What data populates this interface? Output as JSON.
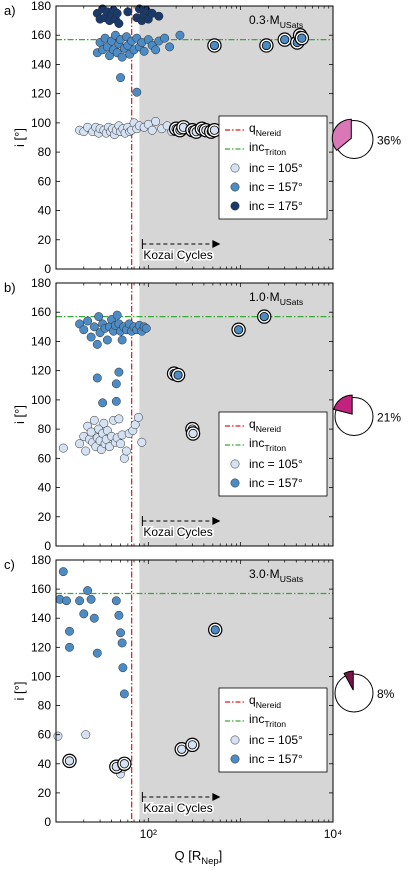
{
  "chart_data": [
    {
      "type": "scatter",
      "panel_label": "a)",
      "mass_label": "0.3·M",
      "mass_sub": "USats",
      "percent": "36%",
      "fraction": 0.36,
      "pie_color": "#d977b7",
      "ylabel": "i [°]",
      "yticks": [
        "0",
        "20",
        "40",
        "60",
        "80",
        "100",
        "120",
        "140",
        "160",
        "180"
      ],
      "xticks": [],
      "xlabel": "",
      "ylim": [
        0,
        180
      ],
      "xlim": [
        10,
        10000
      ],
      "x_log": true,
      "shade_from_x": 80,
      "q_nereid": 66,
      "inc_triton": 157,
      "legend_position": "bottom-right",
      "legend": {
        "q": "q",
        "q_sub": "Nereid",
        "inc": "inc",
        "inc_sub": "Triton",
        "series": [
          "inc = 105°",
          "inc = 157°",
          "inc = 175°"
        ]
      },
      "kozai_label": "Kozai Cycles",
      "series": [
        {
          "color": "#d4e2f3",
          "points": [
            [
              18,
              95
            ],
            [
              20,
              94
            ],
            [
              22,
              97
            ],
            [
              25,
              94
            ],
            [
              27,
              97
            ],
            [
              29,
              93
            ],
            [
              30,
              96
            ],
            [
              33,
              95
            ],
            [
              35,
              93
            ],
            [
              37,
              97
            ],
            [
              39,
              94
            ],
            [
              41,
              96
            ],
            [
              43,
              92
            ],
            [
              45,
              95
            ],
            [
              48,
              98
            ],
            [
              50,
              94
            ],
            [
              53,
              96
            ],
            [
              56,
              93
            ],
            [
              60,
              97
            ],
            [
              63,
              94
            ],
            [
              66,
              95
            ],
            [
              70,
              100
            ],
            [
              75,
              96
            ],
            [
              80,
              98
            ],
            [
              90,
              97
            ],
            [
              100,
              99
            ],
            [
              110,
              95
            ],
            [
              120,
              101
            ],
            [
              140,
              96
            ],
            [
              160,
              98
            ],
            [
              180,
              94
            ]
          ]
        },
        {
          "color": "#4d8bc4",
          "points": [
            [
              28,
              148
            ],
            [
              30,
              155
            ],
            [
              32,
              150
            ],
            [
              34,
              158
            ],
            [
              36,
              152
            ],
            [
              38,
              146
            ],
            [
              40,
              156
            ],
            [
              42,
              150
            ],
            [
              44,
              160
            ],
            [
              46,
              148
            ],
            [
              48,
              154
            ],
            [
              50,
              157
            ],
            [
              52,
              145
            ],
            [
              55,
              151
            ],
            [
              58,
              159
            ],
            [
              60,
              153
            ],
            [
              63,
              147
            ],
            [
              66,
              156
            ],
            [
              70,
              150
            ],
            [
              75,
              158
            ],
            [
              80,
              152
            ],
            [
              85,
              155
            ],
            [
              90,
              149
            ],
            [
              100,
              157
            ],
            [
              110,
              153
            ],
            [
              120,
              150
            ],
            [
              130,
              156
            ],
            [
              150,
              158
            ],
            [
              170,
              152
            ],
            [
              220,
              160
            ],
            [
              50,
              131
            ],
            [
              75,
              121
            ]
          ]
        },
        {
          "color": "#1a3a6b",
          "points": [
            [
              28,
              175
            ],
            [
              30,
              171
            ],
            [
              32,
              178
            ],
            [
              34,
              172
            ],
            [
              36,
              176
            ],
            [
              38,
              170
            ],
            [
              40,
              174
            ],
            [
              42,
              177
            ],
            [
              44,
              171
            ],
            [
              46,
              175
            ],
            [
              48,
              168
            ],
            [
              60,
              176
            ],
            [
              75,
              172
            ],
            [
              80,
              178
            ],
            [
              85,
              170
            ],
            [
              90,
              174
            ],
            [
              95,
              177
            ],
            [
              100,
              171
            ],
            [
              110,
              175
            ],
            [
              130,
              173
            ]
          ]
        }
      ],
      "circled": [
        {
          "x": 200,
          "y": 96,
          "c": "#d4e2f3"
        },
        {
          "x": 220,
          "y": 95,
          "c": "#d4e2f3"
        },
        {
          "x": 240,
          "y": 97,
          "c": "#d4e2f3"
        },
        {
          "x": 300,
          "y": 95,
          "c": "#d4e2f3"
        },
        {
          "x": 330,
          "y": 94,
          "c": "#d4e2f3"
        },
        {
          "x": 380,
          "y": 96,
          "c": "#d4e2f3"
        },
        {
          "x": 420,
          "y": 95,
          "c": "#d4e2f3"
        },
        {
          "x": 480,
          "y": 94,
          "c": "#d4e2f3"
        },
        {
          "x": 520,
          "y": 95,
          "c": "#d4e2f3"
        },
        {
          "x": 1000,
          "y": 97,
          "c": "#d4e2f3"
        },
        {
          "x": 520,
          "y": 153,
          "c": "#4d8bc4"
        },
        {
          "x": 1900,
          "y": 153,
          "c": "#4d8bc4"
        },
        {
          "x": 3000,
          "y": 157,
          "c": "#4d8bc4"
        },
        {
          "x": 4100,
          "y": 155,
          "c": "#4d8bc4"
        },
        {
          "x": 4400,
          "y": 160,
          "c": "#4d8bc4"
        },
        {
          "x": 4600,
          "y": 158,
          "c": "#4d8bc4"
        }
      ]
    },
    {
      "type": "scatter",
      "panel_label": "b)",
      "mass_label": "1.0·M",
      "mass_sub": "USats",
      "percent": "21%",
      "fraction": 0.21,
      "pie_color": "#c2237e",
      "ylabel": "i [°]",
      "yticks": [
        "0",
        "20",
        "40",
        "60",
        "80",
        "100",
        "120",
        "140",
        "160",
        "180"
      ],
      "xticks": [],
      "xlabel": "",
      "ylim": [
        0,
        180
      ],
      "xlim": [
        10,
        10000
      ],
      "x_log": true,
      "shade_from_x": 80,
      "q_nereid": 66,
      "inc_triton": 157,
      "legend_position": "bottom-right",
      "legend": {
        "q": "q",
        "q_sub": "Nereid",
        "inc": "inc",
        "inc_sub": "Triton",
        "series": [
          "inc = 105°",
          "inc = 157°"
        ]
      },
      "kozai_label": "Kozai Cycles",
      "series": [
        {
          "color": "#d4e2f3",
          "points": [
            [
              12,
              67
            ],
            [
              18,
              70
            ],
            [
              20,
              75
            ],
            [
              21,
              65
            ],
            [
              22,
              82
            ],
            [
              23,
              73
            ],
            [
              24,
              78
            ],
            [
              25,
              71
            ],
            [
              26,
              86
            ],
            [
              27,
              68
            ],
            [
              28,
              74
            ],
            [
              29,
              80
            ],
            [
              30,
              72
            ],
            [
              31,
              66
            ],
            [
              32,
              77
            ],
            [
              33,
              84
            ],
            [
              34,
              70
            ],
            [
              35,
              73
            ],
            [
              36,
              79
            ],
            [
              38,
              68
            ],
            [
              40,
              75
            ],
            [
              42,
              86
            ],
            [
              44,
              71
            ],
            [
              46,
              74
            ],
            [
              48,
              87
            ],
            [
              50,
              70
            ],
            [
              52,
              76
            ],
            [
              55,
              60
            ],
            [
              58,
              65
            ],
            [
              62,
              77
            ],
            [
              68,
              79
            ],
            [
              72,
              83
            ],
            [
              78,
              88
            ],
            [
              85,
              71
            ]
          ]
        },
        {
          "color": "#4d8bc4",
          "points": [
            [
              18,
              152
            ],
            [
              20,
              148
            ],
            [
              22,
              154
            ],
            [
              24,
              143
            ],
            [
              26,
              150
            ],
            [
              28,
              138
            ],
            [
              29,
              157
            ],
            [
              30,
              146
            ],
            [
              32,
              152
            ],
            [
              34,
              149
            ],
            [
              36,
              141
            ],
            [
              38,
              150
            ],
            [
              40,
              155
            ],
            [
              42,
              147
            ],
            [
              44,
              151
            ],
            [
              46,
              158
            ],
            [
              48,
              152
            ],
            [
              50,
              147
            ],
            [
              52,
              141
            ],
            [
              54,
              150
            ],
            [
              58,
              148
            ],
            [
              62,
              152
            ],
            [
              66,
              147
            ],
            [
              70,
              150
            ],
            [
              75,
              148
            ],
            [
              80,
              151
            ],
            [
              85,
              147
            ],
            [
              90,
              150
            ],
            [
              95,
              149
            ],
            [
              28,
              115
            ],
            [
              45,
              111
            ],
            [
              48,
              119
            ],
            [
              32,
              98
            ],
            [
              45,
              99
            ]
          ]
        }
      ],
      "circled": [
        {
          "x": 190,
          "y": 118,
          "c": "#4d8bc4"
        },
        {
          "x": 210,
          "y": 117,
          "c": "#4d8bc4"
        },
        {
          "x": 300,
          "y": 80,
          "c": "#d4e2f3"
        },
        {
          "x": 305,
          "y": 77,
          "c": "#d4e2f3"
        },
        {
          "x": 950,
          "y": 148,
          "c": "#4d8bc4"
        },
        {
          "x": 1800,
          "y": 157,
          "c": "#4d8bc4"
        }
      ]
    },
    {
      "type": "scatter",
      "panel_label": "c)",
      "mass_label": "3.0·M",
      "mass_sub": "USats",
      "percent": "8%",
      "fraction": 0.08,
      "pie_color": "#7a1348",
      "ylabel": "i [°]",
      "yticks": [
        "0",
        "20",
        "40",
        "60",
        "80",
        "100",
        "120",
        "140",
        "160",
        "180"
      ],
      "xticks": [
        "10²",
        "10⁴"
      ],
      "xlabel": "Q [R",
      "xlabel_sub": "Nep",
      "xlabel_end": "]",
      "ylim": [
        0,
        180
      ],
      "xlim": [
        10,
        10000
      ],
      "x_log": true,
      "shade_from_x": 80,
      "q_nereid": 66,
      "inc_triton": 157,
      "legend_position": "bottom-right",
      "legend": {
        "q": "q",
        "q_sub": "Nereid",
        "inc": "inc",
        "inc_sub": "Triton",
        "series": [
          "inc = 105°",
          "inc = 157°"
        ]
      },
      "kozai_label": "Kozai Cycles",
      "series": [
        {
          "color": "#d4e2f3",
          "points": [
            [
              10.5,
              59
            ],
            [
              21,
              60
            ],
            [
              45,
              38
            ],
            [
              50,
              33
            ],
            [
              53,
              37
            ],
            [
              56,
              40
            ]
          ]
        },
        {
          "color": "#4d8bc4",
          "points": [
            [
              12,
              172
            ],
            [
              11,
              153
            ],
            [
              13,
              152
            ],
            [
              14,
              131
            ],
            [
              14,
              120
            ],
            [
              18,
              152
            ],
            [
              20,
              143
            ],
            [
              22,
              159
            ],
            [
              24,
              153
            ],
            [
              26,
              140
            ],
            [
              28,
              116
            ],
            [
              45,
              152
            ],
            [
              48,
              142
            ],
            [
              50,
              130
            ],
            [
              52,
              123
            ],
            [
              53,
              106
            ],
            [
              55,
              88
            ]
          ]
        }
      ],
      "circled": [
        {
          "x": 14,
          "y": 42,
          "c": "#d4e2f3"
        },
        {
          "x": 45,
          "y": 38,
          "c": "#d4e2f3"
        },
        {
          "x": 55,
          "y": 40,
          "c": "#d4e2f3"
        },
        {
          "x": 230,
          "y": 50,
          "c": "#d4e2f3"
        },
        {
          "x": 300,
          "y": 53,
          "c": "#d4e2f3"
        },
        {
          "x": 530,
          "y": 132,
          "c": "#4d8bc4"
        }
      ]
    }
  ]
}
